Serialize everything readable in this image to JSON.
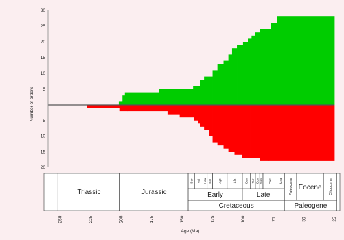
{
  "chart_data": {
    "type": "area",
    "title": "",
    "xlabel": "Age (Ma)",
    "ylabel": "Number of orders",
    "xlim": [
      250,
      25
    ],
    "ylim_top": [
      0,
      30
    ],
    "ylim_bottom": [
      0,
      20
    ],
    "x_ticks": [
      250,
      225,
      200,
      175,
      150,
      125,
      100,
      75,
      50,
      25
    ],
    "y_ticks_top": [
      5,
      10,
      15,
      20,
      25,
      30
    ],
    "y_ticks_bottom": [
      5,
      10,
      15,
      20
    ],
    "series": [
      {
        "color": "#00cc00",
        "direction": "up",
        "steps": [
          [
            201,
            202,
            0
          ],
          [
            202,
            199,
            1
          ],
          [
            199,
            197,
            3
          ],
          [
            197,
            169,
            4
          ],
          [
            169,
            141,
            5
          ],
          [
            141,
            135,
            6
          ],
          [
            135,
            132,
            8
          ],
          [
            132,
            125,
            9
          ],
          [
            125,
            121,
            11
          ],
          [
            121,
            116,
            13
          ],
          [
            116,
            112,
            14
          ],
          [
            112,
            109,
            16
          ],
          [
            109,
            105,
            18
          ],
          [
            105,
            100,
            19
          ],
          [
            100,
            96,
            20
          ],
          [
            96,
            93,
            21
          ],
          [
            93,
            90,
            22
          ],
          [
            90,
            86,
            23
          ],
          [
            86,
            83,
            24
          ],
          [
            83,
            77,
            24
          ],
          [
            77,
            72,
            26
          ],
          [
            72,
            25,
            28
          ]
        ]
      },
      {
        "color": "#ff0000",
        "direction": "down",
        "steps": [
          [
            228,
            201,
            1
          ],
          [
            201,
            195,
            2
          ],
          [
            195,
            162,
            2
          ],
          [
            162,
            152,
            3
          ],
          [
            152,
            140,
            4
          ],
          [
            140,
            137,
            5
          ],
          [
            137,
            135,
            6
          ],
          [
            135,
            132,
            7
          ],
          [
            132,
            128,
            8
          ],
          [
            128,
            125,
            10
          ],
          [
            125,
            121,
            12
          ],
          [
            121,
            116,
            13
          ],
          [
            116,
            112,
            14
          ],
          [
            112,
            107,
            15
          ],
          [
            107,
            101,
            16
          ],
          [
            101,
            94,
            17
          ],
          [
            94,
            86,
            17
          ],
          [
            86,
            79,
            18
          ],
          [
            79,
            25,
            18
          ]
        ]
      }
    ],
    "timescale": {
      "periods": [
        {
          "label": "Triassic",
          "start": 252,
          "end": 201
        },
        {
          "label": "Jurassic",
          "start": 201,
          "end": 145
        },
        {
          "label": "Cretaceous",
          "start": 145,
          "end": 66
        },
        {
          "label": "Paleogene",
          "start": 66,
          "end": 23
        }
      ],
      "epochs": [
        {
          "label": "Early",
          "start": 145,
          "end": 100.5
        },
        {
          "label": "Late",
          "start": 100.5,
          "end": 66
        },
        {
          "label": "Paleocene",
          "start": 66,
          "end": 56,
          "vertical": true
        },
        {
          "label": "Eocene",
          "start": 56,
          "end": 33.9
        },
        {
          "label": "Oligocene",
          "start": 33.9,
          "end": 23,
          "vertical": true
        }
      ],
      "stages": [
        {
          "label": "Ber",
          "start": 145,
          "end": 139.8
        },
        {
          "label": "Val",
          "start": 139.8,
          "end": 132.9
        },
        {
          "label": "Hau",
          "start": 132.9,
          "end": 129.4
        },
        {
          "label": "Bar",
          "start": 129.4,
          "end": 125
        },
        {
          "label": "Apt",
          "start": 125,
          "end": 113
        },
        {
          "label": "Alb",
          "start": 113,
          "end": 100.5
        },
        {
          "label": "Cen",
          "start": 100.5,
          "end": 93.9
        },
        {
          "label": "Tur",
          "start": 93.9,
          "end": 89.8
        },
        {
          "label": "Con",
          "start": 89.8,
          "end": 86.3
        },
        {
          "label": "San",
          "start": 86.3,
          "end": 83.6
        },
        {
          "label": "Cam",
          "start": 83.6,
          "end": 72.1
        },
        {
          "label": "Maa",
          "start": 72.1,
          "end": 66
        }
      ]
    }
  }
}
